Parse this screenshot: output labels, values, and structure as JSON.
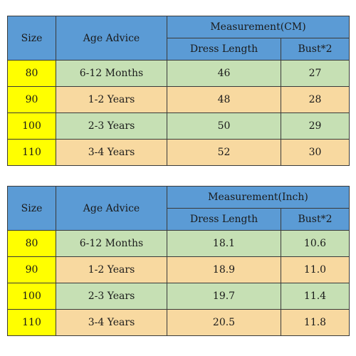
{
  "tables": [
    {
      "headers": {
        "size": "Size",
        "age": "Age Advice",
        "measurement": "Measurement(CM)",
        "dress_length": "Dress Length",
        "bust": "Bust*2"
      },
      "rows": [
        {
          "size": "80",
          "age": "6-12 Months",
          "dress_length": "46",
          "bust": "27"
        },
        {
          "size": "90",
          "age": "1-2 Years",
          "dress_length": "48",
          "bust": "28"
        },
        {
          "size": "100",
          "age": "2-3 Years",
          "dress_length": "50",
          "bust": "29"
        },
        {
          "size": "110",
          "age": "3-4 Years",
          "dress_length": "52",
          "bust": "30"
        }
      ]
    },
    {
      "headers": {
        "size": "Size",
        "age": "Age Advice",
        "measurement": "Measurement(Inch)",
        "dress_length": "Dress Length",
        "bust": "Bust*2"
      },
      "rows": [
        {
          "size": "80",
          "age": "6-12 Months",
          "dress_length": "18.1",
          "bust": "10.6"
        },
        {
          "size": "90",
          "age": "1-2 Years",
          "dress_length": "18.9",
          "bust": "11.0"
        },
        {
          "size": "100",
          "age": "2-3 Years",
          "dress_length": "19.7",
          "bust": "11.4"
        },
        {
          "size": "110",
          "age": "3-4 Years",
          "dress_length": "20.5",
          "bust": "11.8"
        }
      ]
    }
  ],
  "colors": {
    "header_blue": "#5b9bd5",
    "size_yellow": "#ffff00",
    "row_green": "#c6e0b4",
    "row_tan": "#f8d9a0"
  }
}
